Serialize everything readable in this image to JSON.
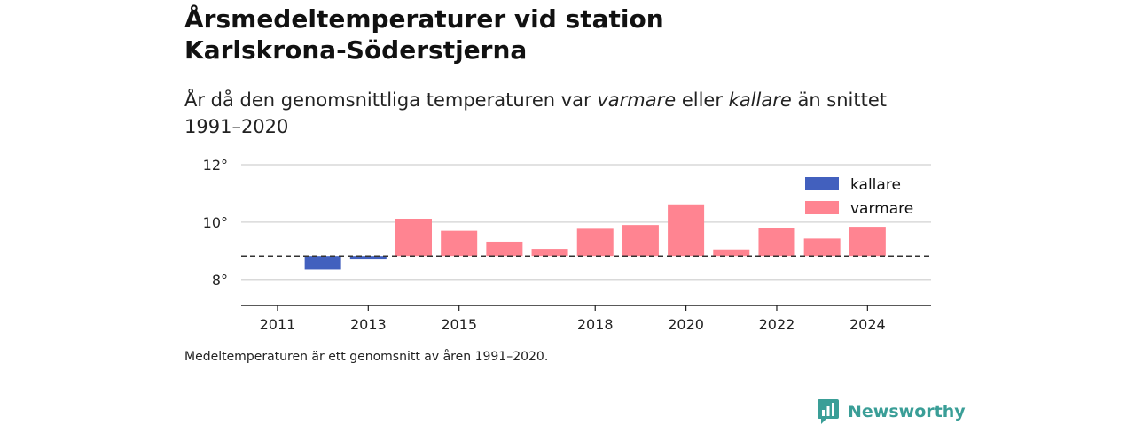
{
  "header": {
    "title": "Årsmedeltemperaturer vid station Karlskrona-Söderstjerna",
    "subtitle_part1": "År då den genomsnittliga temperaturen var ",
    "subtitle_em1": "varmare",
    "subtitle_part2": " eller ",
    "subtitle_em2": "kallare",
    "subtitle_part3": " än snittet 1991–2020"
  },
  "footer": {
    "note": "Medeltemperaturen är ett genomsnitt av åren 1991–2020.",
    "brand": "Newsworthy"
  },
  "colors": {
    "warmer": "#ff8491",
    "colder": "#4260be",
    "grid": "#d9d9d9",
    "brand": "#3a9e97"
  },
  "chart_data": {
    "type": "bar",
    "baseline": 8.82,
    "ylim": [
      7.1,
      12
    ],
    "yticks": [
      {
        "value": 8,
        "label": "8°"
      },
      {
        "value": 10,
        "label": "10°"
      },
      {
        "value": 12,
        "label": "12°"
      }
    ],
    "xticks": [
      2011,
      2013,
      2015,
      2018,
      2020,
      2022,
      2024
    ],
    "x": [
      2012,
      2013,
      2014,
      2015,
      2016,
      2017,
      2018,
      2019,
      2020,
      2021,
      2022,
      2023,
      2024
    ],
    "values": [
      8.35,
      8.7,
      10.12,
      9.7,
      9.32,
      9.07,
      9.77,
      9.9,
      10.62,
      9.05,
      9.8,
      9.43,
      9.84
    ],
    "xlim": [
      2010.2,
      2025.4
    ],
    "legend": {
      "position": "top-right",
      "items": [
        {
          "label": "kallare",
          "key": "colder"
        },
        {
          "label": "varmare",
          "key": "warmer"
        }
      ]
    }
  }
}
